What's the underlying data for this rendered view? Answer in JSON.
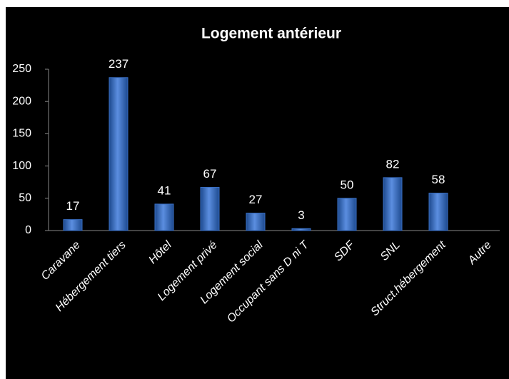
{
  "chart_data": {
    "type": "bar",
    "title": "Logement antérieur",
    "categories": [
      "Caravane",
      "Hébergement  tiers",
      "Hôtel",
      "Logement privé",
      "Logement social",
      "Occupant sans D ni T",
      "SDF",
      "SNL",
      "Struct.hébergement",
      "Autre"
    ],
    "values": [
      17,
      237,
      41,
      67,
      27,
      3,
      50,
      82,
      58,
      null
    ],
    "color": "#3a6fc4",
    "ylim": [
      0,
      250
    ],
    "yticks": [
      0,
      50,
      100,
      150,
      200,
      250
    ],
    "grid": false
  }
}
